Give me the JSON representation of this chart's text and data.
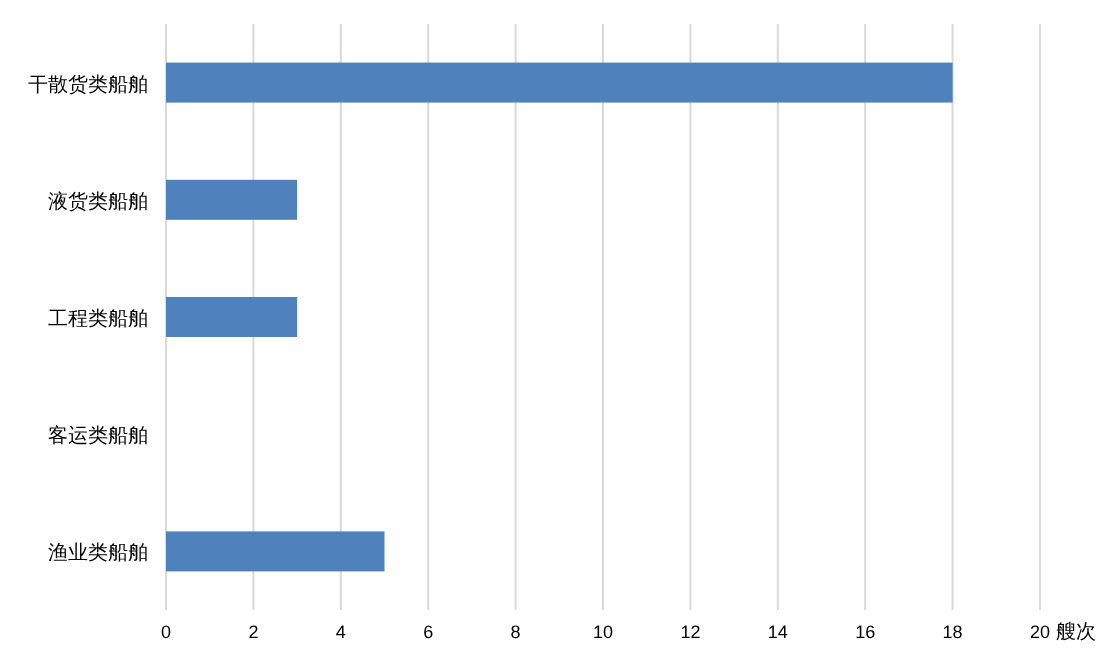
{
  "chart_data": {
    "type": "bar",
    "orientation": "horizontal",
    "categories": [
      "干散货类船舶",
      "液货类船舶",
      "工程类船舶",
      "客运类船舶",
      "渔业类船舶"
    ],
    "values": [
      18,
      3,
      3,
      0,
      5
    ],
    "color": "#4f81bd",
    "xlabel": "艘次",
    "xlim": [
      0,
      20
    ],
    "xticks": [
      0,
      2,
      4,
      6,
      8,
      10,
      12,
      14,
      16,
      18,
      20
    ],
    "grid": "x"
  }
}
